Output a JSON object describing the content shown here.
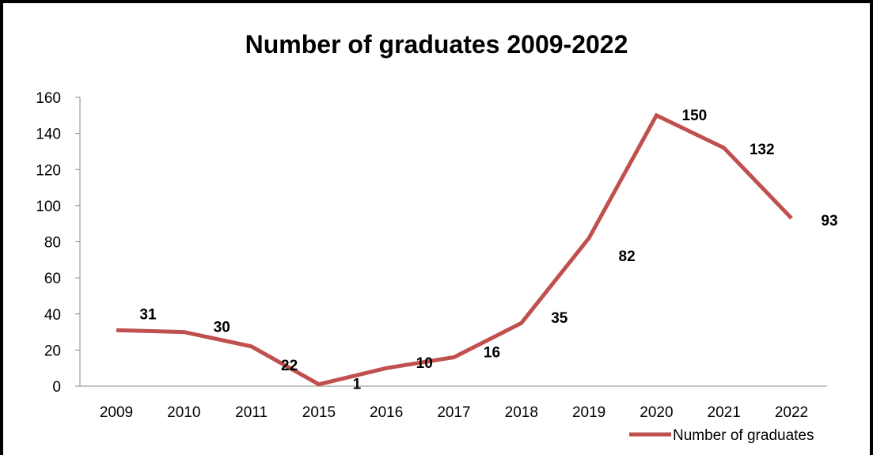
{
  "chart_data": {
    "type": "line",
    "title": "Number of graduates 2009-2022",
    "xlabel": "",
    "ylabel": "",
    "categories": [
      "2009",
      "2010",
      "2011",
      "2015",
      "2016",
      "2017",
      "2018",
      "2019",
      "2020",
      "2021",
      "2022"
    ],
    "series": [
      {
        "name": "Number of graduates",
        "color": "#C0504D",
        "values": [
          31,
          30,
          22,
          1,
          10,
          16,
          35,
          82,
          150,
          132,
          93
        ]
      }
    ],
    "ylim": [
      0,
      160
    ],
    "yticks": [
      "0",
      "20",
      "40",
      "60",
      "80",
      "100",
      "120",
      "140",
      "160"
    ],
    "grid": false,
    "legend": "bottom-right",
    "data_labels": true
  }
}
